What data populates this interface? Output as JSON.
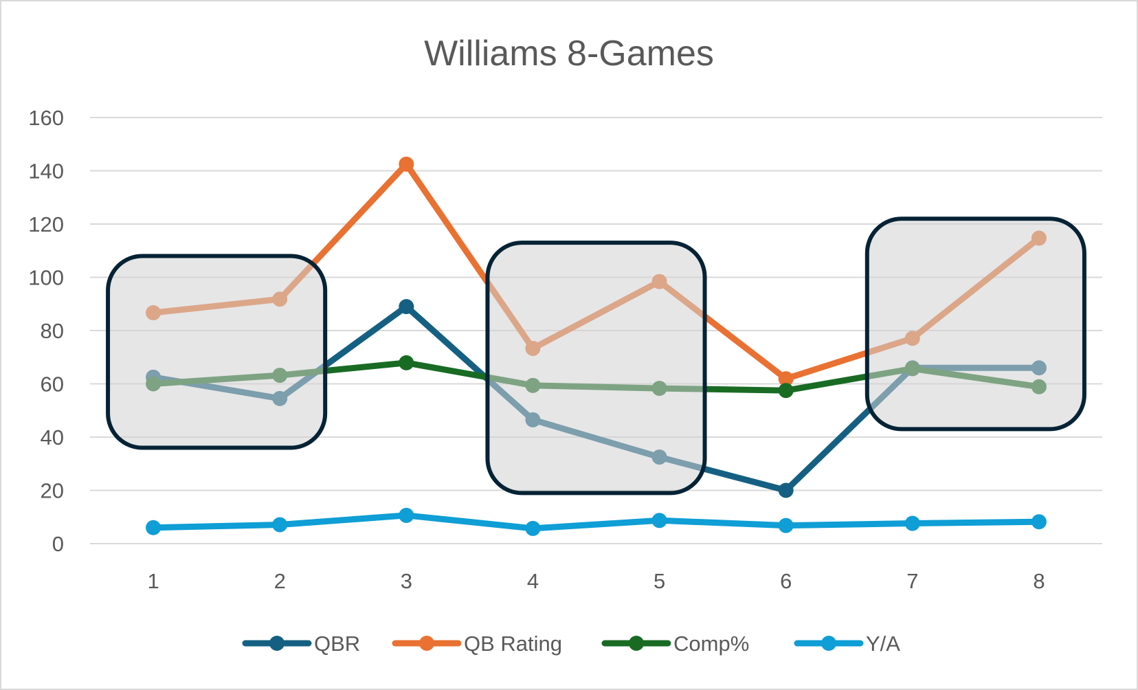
{
  "chart_data": {
    "type": "line",
    "title": "Williams 8-Games",
    "xlabel": "",
    "ylabel": "",
    "categories": [
      "1",
      "2",
      "3",
      "4",
      "5",
      "6",
      "7",
      "8"
    ],
    "ylim": [
      0,
      160
    ],
    "yticks": [
      0,
      20,
      40,
      60,
      80,
      100,
      120,
      140,
      160
    ],
    "grid": true,
    "legend_position": "bottom",
    "series": [
      {
        "name": "QBR",
        "color": "#156082",
        "values": [
          62.5,
          54.5,
          89,
          46.5,
          32.5,
          20,
          66,
          66
        ]
      },
      {
        "name": "QB Rating",
        "color": "#E97132",
        "values": [
          86.7,
          91.8,
          142.5,
          73.3,
          98.4,
          61.9,
          77.1,
          114.7
        ]
      },
      {
        "name": "Comp%",
        "color": "#196B24",
        "values": [
          60,
          63.2,
          67.9,
          59.4,
          58.3,
          57.5,
          65.7,
          58.9
        ]
      },
      {
        "name": "Y/A",
        "color": "#0F9ED5",
        "values": [
          6,
          7.1,
          10.6,
          5.7,
          8.7,
          6.8,
          7.6,
          8.2
        ]
      }
    ],
    "annotations": [
      {
        "type": "highlight-box",
        "games": [
          "1",
          "2"
        ],
        "yrange": [
          36,
          108
        ]
      },
      {
        "type": "highlight-box",
        "games": [
          "4",
          "5"
        ],
        "yrange": [
          19,
          113
        ]
      },
      {
        "type": "highlight-box",
        "games": [
          "7",
          "8"
        ],
        "yrange": [
          43,
          122
        ]
      }
    ]
  }
}
